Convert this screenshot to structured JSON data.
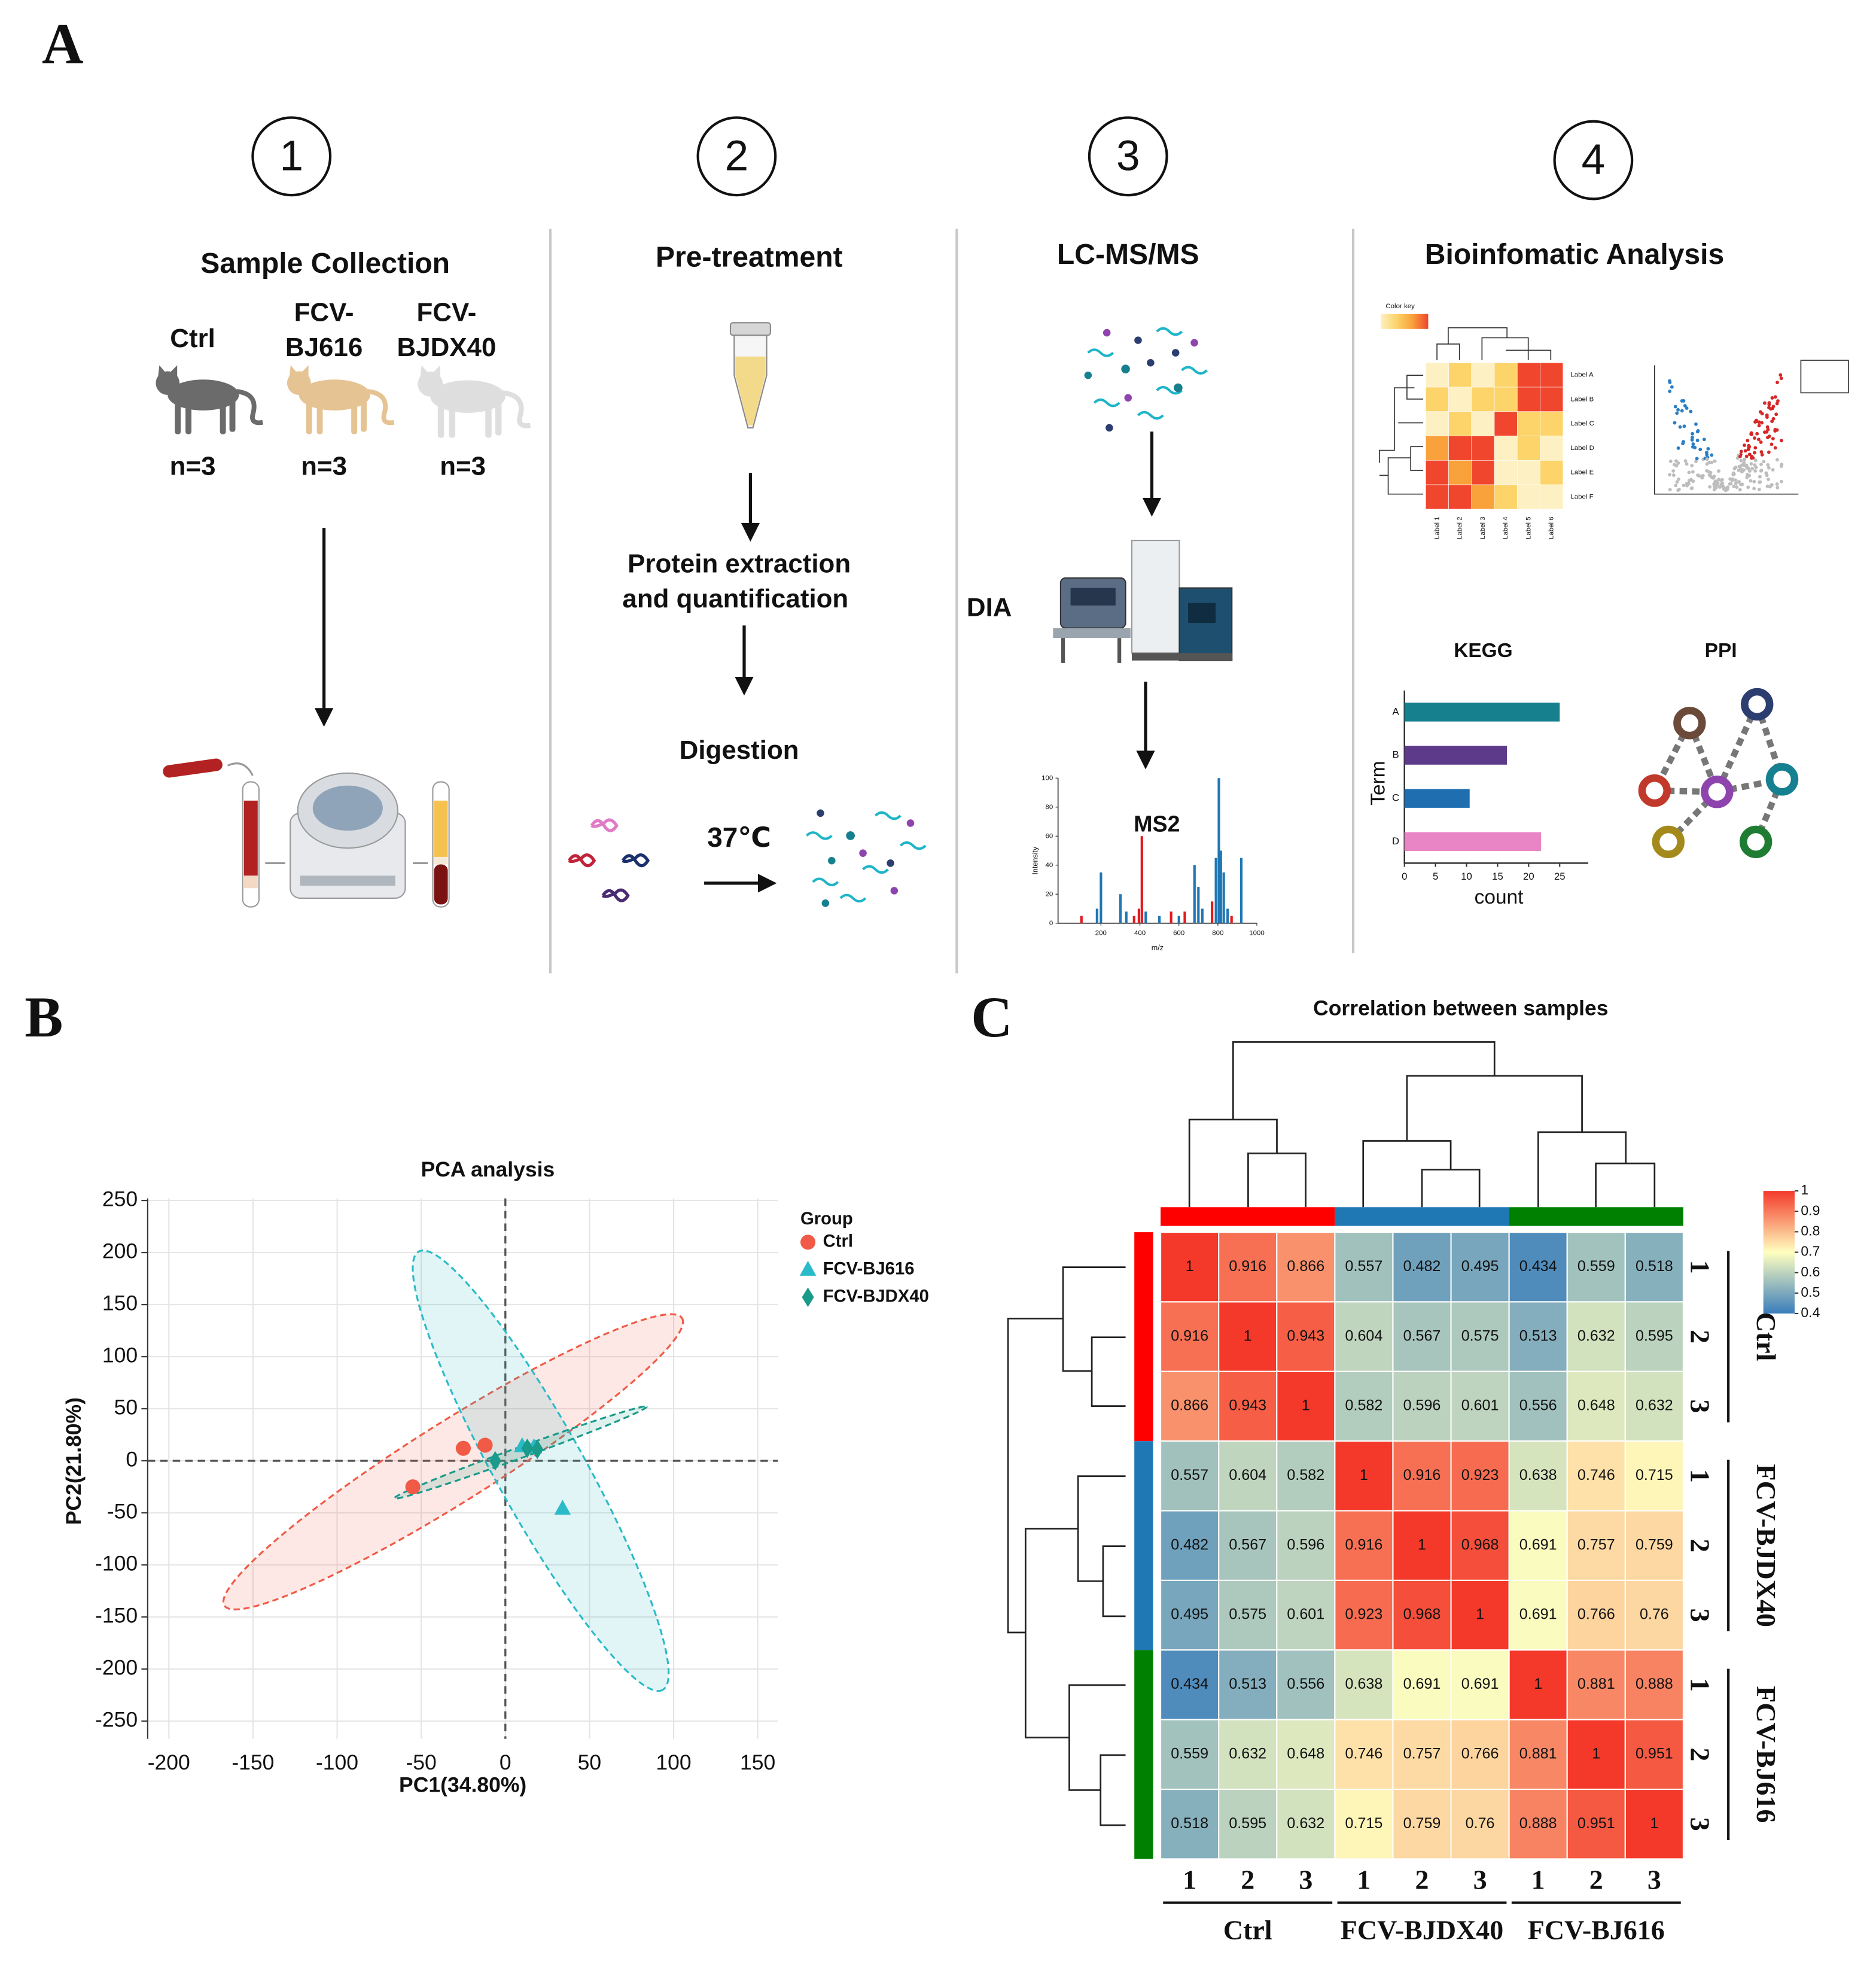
{
  "panel_labels": [
    "A",
    "B",
    "C"
  ],
  "workflow": {
    "steps": [
      {
        "number": "1",
        "title": "Sample Collection",
        "groups": [
          {
            "name": [
              "Ctrl"
            ],
            "n": "n=3"
          },
          {
            "name": [
              "FCV-",
              "BJ616"
            ],
            "n": "n=3"
          },
          {
            "name": [
              "FCV-",
              "BJDX40"
            ],
            "n": "n=3"
          }
        ]
      },
      {
        "number": "2",
        "title": "Pre-treatment",
        "stages": [
          "Protein extraction",
          "and quantification",
          "Digestion"
        ],
        "temperature": "37℃"
      },
      {
        "number": "3",
        "title": "LC-MS/MS",
        "method": "DIA"
      },
      {
        "number": "4",
        "title": "Bioinfomatic Analysis",
        "heatmap_icon": {
          "color_key": "Color key",
          "row_labels": [
            "Label A",
            "Label B",
            "Label C",
            "Label D",
            "Label E",
            "Label F"
          ],
          "col_labels": [
            "Label 1",
            "Label 2",
            "Label 3",
            "Label 4",
            "Label 5",
            "Label 6"
          ],
          "levels": [
            [
              0,
              1,
              0,
              1,
              3,
              3
            ],
            [
              1,
              0,
              1,
              1,
              3,
              3
            ],
            [
              0,
              1,
              0,
              3,
              1,
              1
            ],
            [
              2,
              3,
              3,
              0,
              1,
              0
            ],
            [
              3,
              2,
              3,
              0,
              0,
              1
            ],
            [
              3,
              3,
              2,
              1,
              0,
              0
            ]
          ],
          "level_colors": [
            "#fdf0c2",
            "#fcd46a",
            "#f9a13a",
            "#f0462e"
          ]
        },
        "kegg_title": "KEGG",
        "ppi_title": "PPI"
      }
    ]
  },
  "chart_data": [
    {
      "type": "hbar",
      "categories": [
        "A",
        "B",
        "C",
        "D"
      ],
      "values": [
        25,
        16.5,
        10.5,
        22
      ],
      "colors": [
        "#17808f",
        "#5e3b8a",
        "#1f6fb0",
        "#e985c5"
      ],
      "xlim": [
        0,
        29.6
      ],
      "xticks": [
        0,
        5,
        10,
        15,
        20,
        25
      ],
      "xlabel": "count",
      "ylabel": "Term"
    },
    {
      "type": "spectrum",
      "title": "MS2",
      "xlabel": "m/z",
      "ylabel": "Intensity",
      "xlim": [
        -20,
        1000
      ],
      "ylim": [
        0,
        100
      ],
      "xticks": [
        200,
        400,
        600,
        800,
        1000
      ],
      "yticks": [
        0,
        20,
        40,
        60,
        80,
        100
      ],
      "series": [
        {
          "color": "#1f77b4",
          "x": [
            180,
            200,
            300,
            330,
            430,
            500,
            600,
            680,
            700,
            720,
            790,
            805,
            815,
            830,
            850,
            920
          ],
          "values": [
            10,
            35,
            20,
            8,
            8,
            5,
            5,
            40,
            25,
            10,
            45,
            100,
            50,
            35,
            10,
            45
          ]
        },
        {
          "color": "#e41a1c",
          "x": [
            100,
            370,
            395,
            410,
            560,
            630,
            770,
            870
          ],
          "values": [
            5,
            5,
            10,
            60,
            8,
            8,
            15,
            5
          ]
        }
      ]
    },
    {
      "type": "scatter",
      "title": "PCA analysis",
      "xlabel": "PC1(34.80%)",
      "ylabel": "PC2(21.80%)",
      "xlim": [
        -212.6,
        162
      ],
      "ylim": [
        -267,
        252
      ],
      "xticks": [
        -200,
        -150,
        -100,
        -50,
        0,
        50,
        100,
        150
      ],
      "yticks": [
        -250,
        -200,
        -150,
        -100,
        -50,
        0,
        50,
        100,
        150,
        200,
        250
      ],
      "grid": true,
      "hlines": [
        0
      ],
      "vlines": [
        0
      ],
      "legend_title": "Group",
      "legend": "right",
      "series": [
        {
          "name": "Ctrl",
          "color": "#f05a46",
          "marker": "circle",
          "x": [
            -55,
            -25,
            -12
          ],
          "values": [
            -25,
            12,
            15
          ],
          "ellipse": {
            "center": [
              -31,
              -1
            ],
            "axis_end": [
              105,
              137
            ],
            "minor_end": [
              -19,
              -34
            ]
          }
        },
        {
          "name": "FCV-BJ616",
          "color": "#2bbbc8",
          "marker": "triangle",
          "x": [
            10,
            17,
            34
          ],
          "values": [
            14,
            13,
            -46
          ],
          "ellipse": {
            "center": [
              21,
              -9.5
            ],
            "axis_end": [
              93.5,
              -220
            ],
            "minor_end": [
              44,
              -30
            ]
          }
        },
        {
          "name": "FCV-BJDX40",
          "color": "#1a9a8a",
          "marker": "diamond",
          "x": [
            -6,
            13,
            19
          ],
          "values": [
            0,
            12,
            11
          ],
          "ellipse": {
            "center": [
              9,
              8
            ],
            "axis_end": [
              84,
              52
            ],
            "minor_end": [
              10,
              3
            ]
          }
        }
      ]
    },
    {
      "type": "heatmap",
      "title": "Correlation between samples",
      "groups": [
        {
          "name": "Ctrl",
          "color": "#ff0000"
        },
        {
          "name": "FCV-BJDX40",
          "color": "#1f78b4"
        },
        {
          "name": "FCV-BJ616",
          "color": "#008000"
        }
      ],
      "row_labels": [
        "1",
        "2",
        "3",
        "1",
        "2",
        "3",
        "1",
        "2",
        "3"
      ],
      "col_labels": [
        "1",
        "2",
        "3",
        "1",
        "2",
        "3",
        "1",
        "2",
        "3"
      ],
      "values": [
        [
          1,
          0.916,
          0.866,
          0.557,
          0.482,
          0.495,
          0.434,
          0.559,
          0.518
        ],
        [
          0.916,
          1,
          0.943,
          0.604,
          0.567,
          0.575,
          0.513,
          0.632,
          0.595
        ],
        [
          0.866,
          0.943,
          1,
          0.582,
          0.596,
          0.601,
          0.556,
          0.648,
          0.632
        ],
        [
          0.557,
          0.604,
          0.582,
          1,
          0.916,
          0.923,
          0.638,
          0.746,
          0.715
        ],
        [
          0.482,
          0.567,
          0.596,
          0.916,
          1,
          0.968,
          0.691,
          0.757,
          0.759
        ],
        [
          0.495,
          0.575,
          0.601,
          0.923,
          0.968,
          1,
          0.691,
          0.766,
          0.76
        ],
        [
          0.434,
          0.513,
          0.556,
          0.638,
          0.691,
          0.691,
          1,
          0.881,
          0.888
        ],
        [
          0.559,
          0.632,
          0.648,
          0.746,
          0.757,
          0.766,
          0.881,
          1,
          0.951
        ],
        [
          0.518,
          0.595,
          0.632,
          0.715,
          0.759,
          0.76,
          0.888,
          0.951,
          1
        ]
      ],
      "zlim": [
        0.4,
        1
      ],
      "zticks": [
        0.4,
        0.5,
        0.6,
        0.7,
        0.8,
        0.9,
        1
      ],
      "colors": [
        "#3a7dbb",
        "#ffffbf",
        "#f4392a"
      ]
    }
  ]
}
